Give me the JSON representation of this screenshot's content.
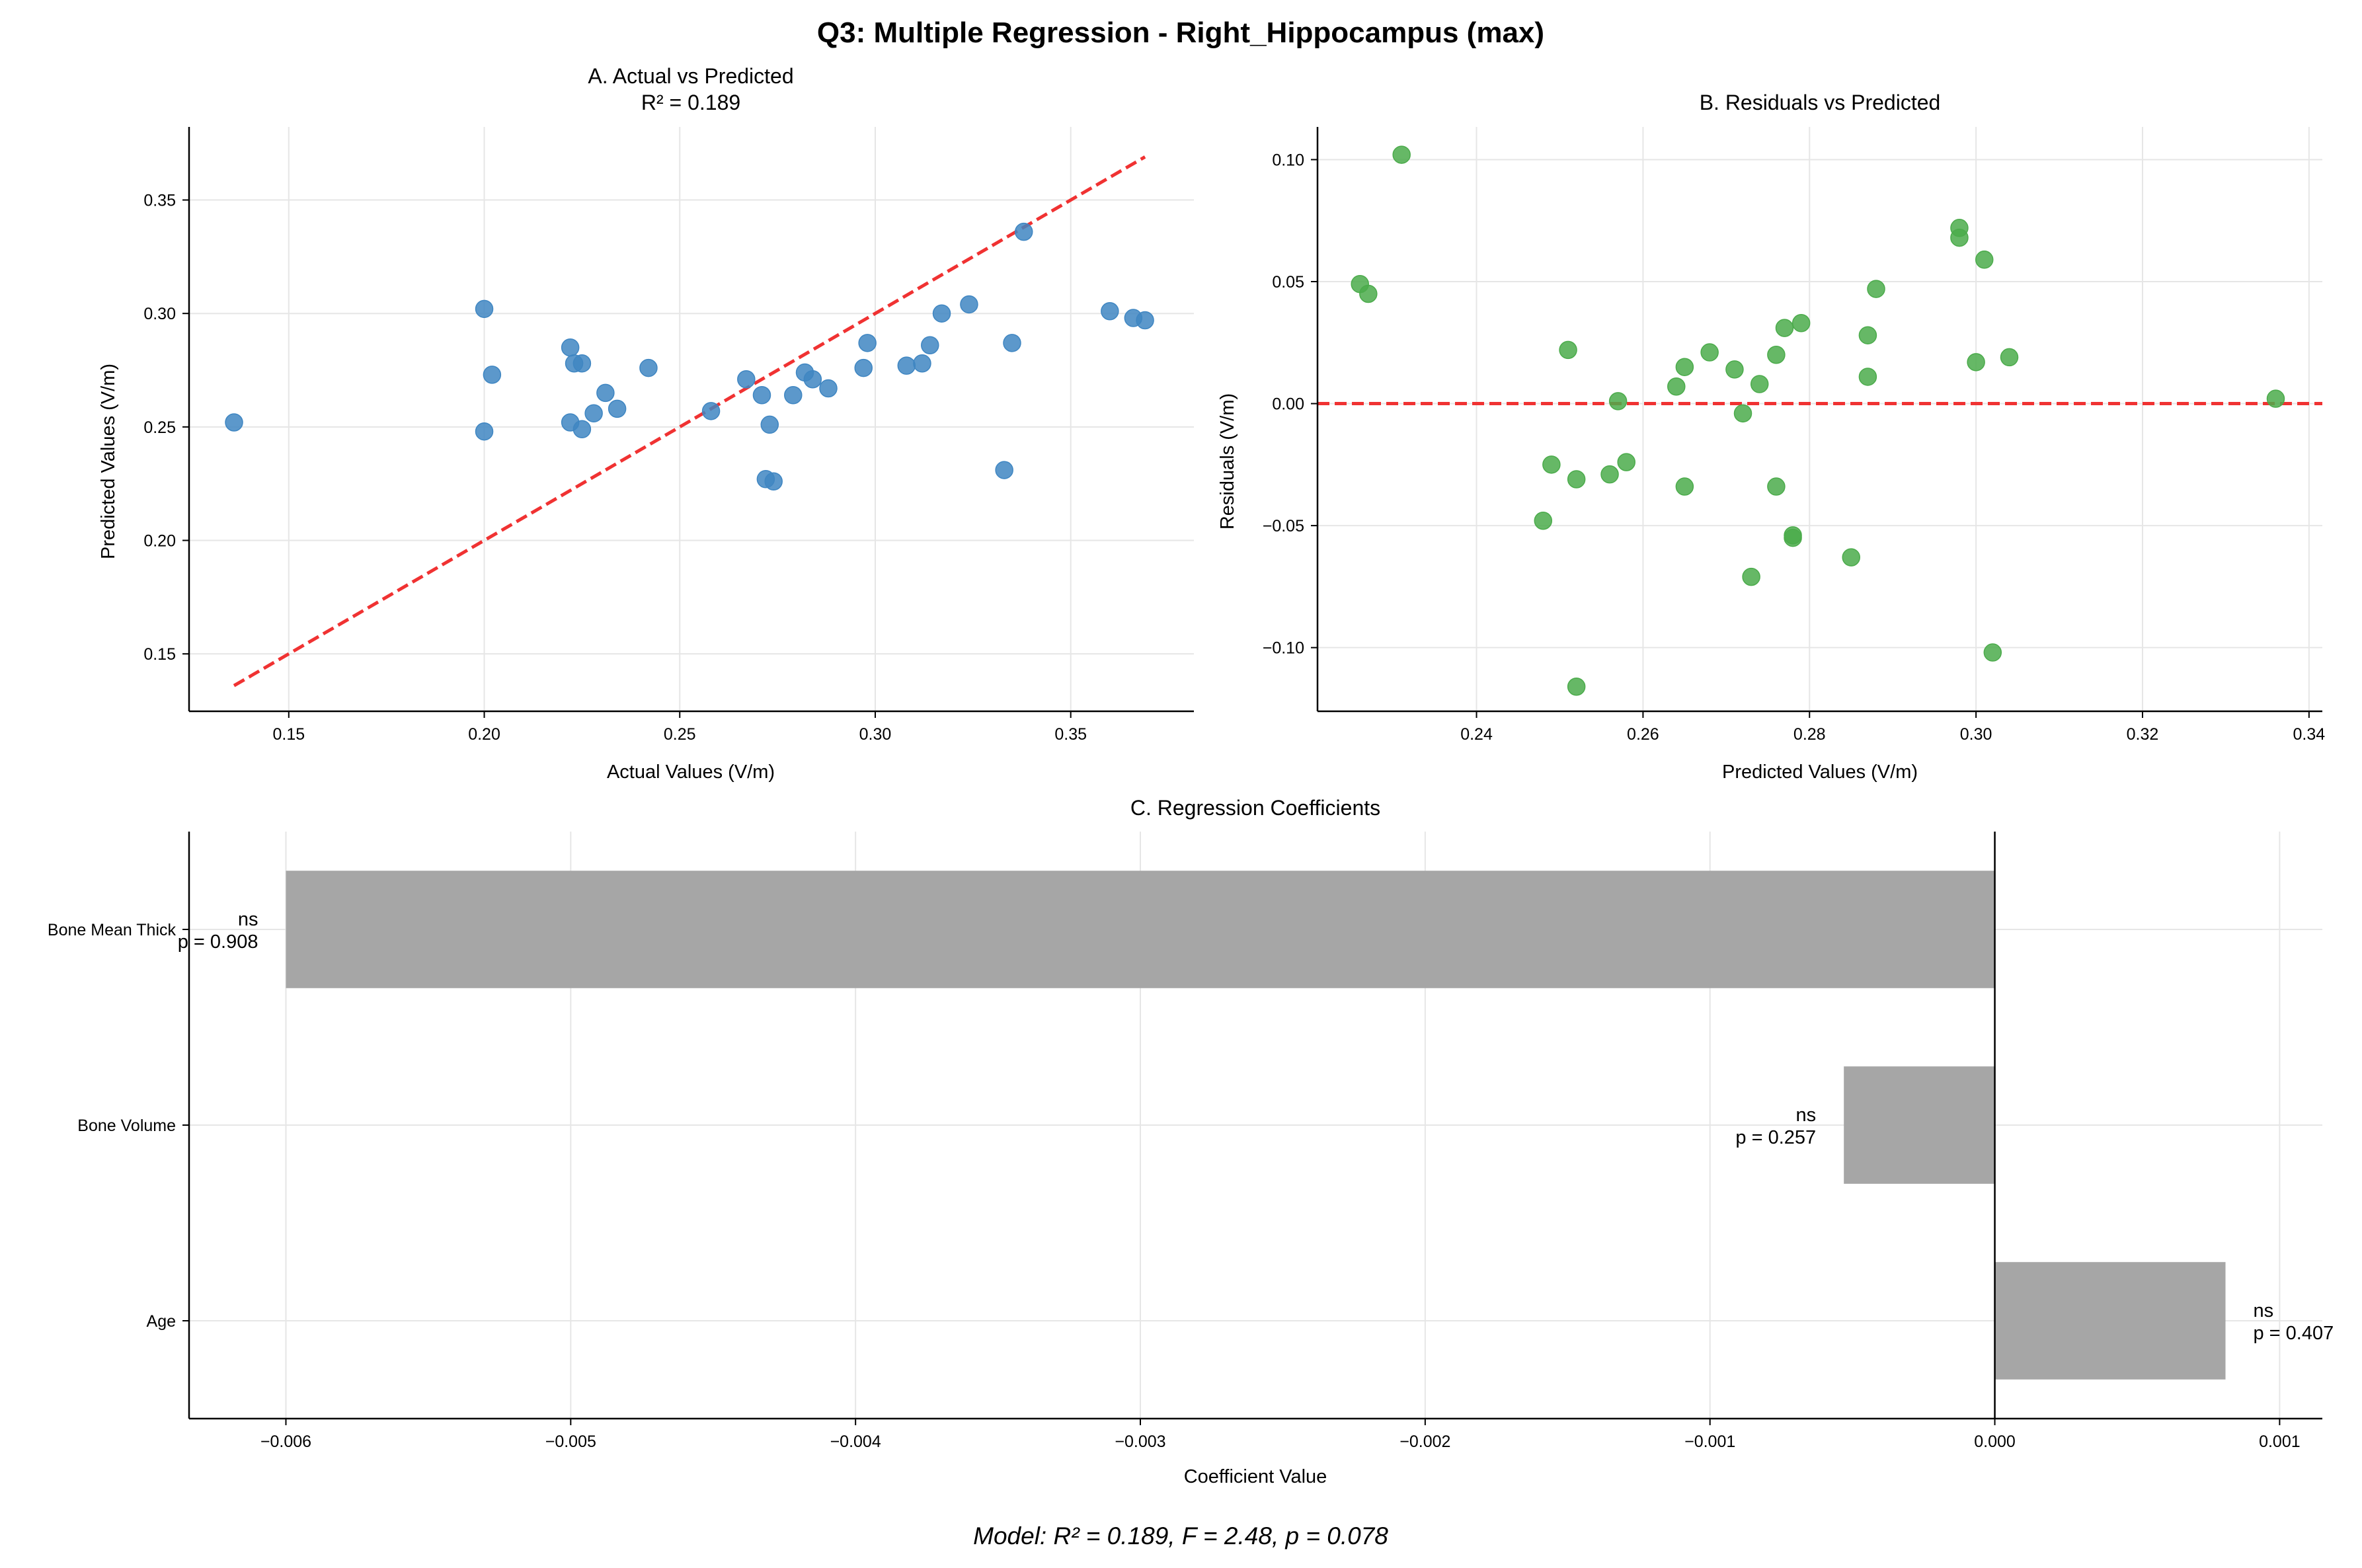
{
  "figure": {
    "suptitle": "Q3: Multiple Regression - Right_Hippocampus (max)",
    "footer": "Model: R² = 0.189, F = 2.48, p = 0.078"
  },
  "colors": {
    "scatterA": "#3f86c2",
    "scatterB": "#4bab4b",
    "refLine": "#f03232",
    "bar": "#a6a6a6",
    "grid": "#e6e6e6",
    "zeroLine": "#000000"
  },
  "chart_data": [
    {
      "id": "A",
      "type": "scatter",
      "title": "A. Actual vs Predicted",
      "subtitle": "R² = 0.189",
      "xlabel": "Actual Values (V/m)",
      "ylabel": "Predicted Values (V/m)",
      "xlim": [
        0.1245,
        0.3815
      ],
      "ylim": [
        0.1247,
        0.3822
      ],
      "xticks": [
        0.15,
        0.2,
        0.25,
        0.3,
        0.35
      ],
      "xticklabels": [
        "0.15",
        "0.20",
        "0.25",
        "0.30",
        "0.35"
      ],
      "yticks": [
        0.15,
        0.2,
        0.25,
        0.3,
        0.35
      ],
      "yticklabels": [
        "0.15",
        "0.20",
        "0.25",
        "0.30",
        "0.35"
      ],
      "grid": true,
      "reference_line": {
        "x": [
          0.136,
          0.369
        ],
        "y": [
          0.136,
          0.369
        ],
        "style": "dashed"
      },
      "points": [
        [
          0.136,
          0.252
        ],
        [
          0.2,
          0.302
        ],
        [
          0.2,
          0.248
        ],
        [
          0.202,
          0.273
        ],
        [
          0.222,
          0.285
        ],
        [
          0.222,
          0.252
        ],
        [
          0.223,
          0.278
        ],
        [
          0.225,
          0.278
        ],
        [
          0.225,
          0.249
        ],
        [
          0.228,
          0.256
        ],
        [
          0.231,
          0.265
        ],
        [
          0.234,
          0.258
        ],
        [
          0.242,
          0.276
        ],
        [
          0.258,
          0.257
        ],
        [
          0.267,
          0.271
        ],
        [
          0.271,
          0.264
        ],
        [
          0.272,
          0.227
        ],
        [
          0.273,
          0.251
        ],
        [
          0.274,
          0.226
        ],
        [
          0.279,
          0.264
        ],
        [
          0.282,
          0.274
        ],
        [
          0.284,
          0.271
        ],
        [
          0.288,
          0.267
        ],
        [
          0.297,
          0.276
        ],
        [
          0.298,
          0.287
        ],
        [
          0.308,
          0.277
        ],
        [
          0.312,
          0.278
        ],
        [
          0.314,
          0.286
        ],
        [
          0.317,
          0.3
        ],
        [
          0.324,
          0.304
        ],
        [
          0.333,
          0.231
        ],
        [
          0.335,
          0.287
        ],
        [
          0.338,
          0.336
        ],
        [
          0.36,
          0.301
        ],
        [
          0.366,
          0.298
        ],
        [
          0.369,
          0.297
        ]
      ]
    },
    {
      "id": "B",
      "type": "scatter",
      "title": "B. Residuals vs Predicted",
      "xlabel": "Predicted Values (V/m)",
      "ylabel": "Residuals (V/m)",
      "xlim": [
        0.2209,
        0.3416
      ],
      "ylim": [
        -0.1261,
        0.1134
      ],
      "xticks": [
        0.24,
        0.26,
        0.28,
        0.3,
        0.32,
        0.34
      ],
      "xticklabels": [
        "0.24",
        "0.26",
        "0.28",
        "0.30",
        "0.32",
        "0.34"
      ],
      "yticks": [
        -0.1,
        -0.05,
        0.0,
        0.05,
        0.1
      ],
      "yticklabels": [
        "−0.10",
        "−0.05",
        "0.00",
        "0.05",
        "0.10"
      ],
      "grid": true,
      "zero_line": {
        "y": 0,
        "style": "dashed"
      },
      "points": [
        [
          0.226,
          0.049
        ],
        [
          0.227,
          0.045
        ],
        [
          0.231,
          0.102
        ],
        [
          0.248,
          -0.048
        ],
        [
          0.249,
          -0.025
        ],
        [
          0.251,
          0.022
        ],
        [
          0.252,
          -0.031
        ],
        [
          0.252,
          -0.116
        ],
        [
          0.256,
          -0.029
        ],
        [
          0.257,
          0.001
        ],
        [
          0.258,
          -0.024
        ],
        [
          0.264,
          0.007
        ],
        [
          0.265,
          0.015
        ],
        [
          0.265,
          -0.034
        ],
        [
          0.268,
          0.021
        ],
        [
          0.271,
          0.014
        ],
        [
          0.272,
          -0.004
        ],
        [
          0.273,
          -0.071
        ],
        [
          0.274,
          0.008
        ],
        [
          0.276,
          -0.034
        ],
        [
          0.276,
          0.02
        ],
        [
          0.277,
          0.031
        ],
        [
          0.278,
          -0.055
        ],
        [
          0.278,
          -0.054
        ],
        [
          0.279,
          0.033
        ],
        [
          0.285,
          -0.063
        ],
        [
          0.287,
          0.028
        ],
        [
          0.287,
          0.011
        ],
        [
          0.288,
          0.047
        ],
        [
          0.298,
          0.072
        ],
        [
          0.298,
          0.068
        ],
        [
          0.3,
          0.017
        ],
        [
          0.301,
          0.059
        ],
        [
          0.302,
          -0.102
        ],
        [
          0.304,
          0.019
        ],
        [
          0.336,
          0.002
        ]
      ]
    },
    {
      "id": "C",
      "type": "bar",
      "orientation": "horizontal",
      "title": "C. Regression Coefficients",
      "xlabel": "Coefficient Value",
      "xlim": [
        -0.00634,
        0.00115
      ],
      "xticks": [
        -0.006,
        -0.005,
        -0.004,
        -0.003,
        -0.002,
        -0.001,
        0.0,
        0.001
      ],
      "xticklabels": [
        "−0.006",
        "−0.005",
        "−0.004",
        "−0.003",
        "−0.002",
        "−0.001",
        "0.000",
        "0.001"
      ],
      "grid": true,
      "categories": [
        "Bone Mean Thick",
        "Bone Volume",
        "Age"
      ],
      "values": [
        -0.006,
        -0.00053,
        0.00081
      ],
      "annotations": [
        {
          "sig": "ns",
          "p": "p = 0.908"
        },
        {
          "sig": "ns",
          "p": "p = 0.257"
        },
        {
          "sig": "ns",
          "p": "p = 0.407"
        }
      ]
    }
  ]
}
